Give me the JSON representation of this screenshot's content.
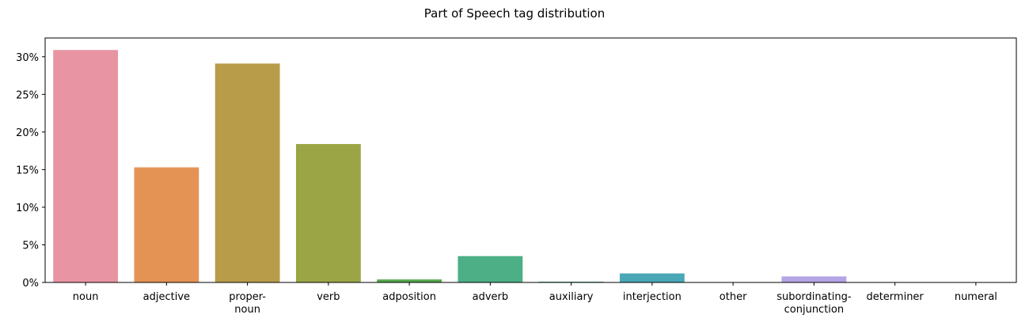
{
  "chart_data": {
    "type": "bar",
    "title": "Part of Speech tag distribution",
    "xlabel": "",
    "ylabel": "",
    "categories": [
      "noun",
      "adjective",
      "proper-\nnoun",
      "verb",
      "adposition",
      "adverb",
      "auxiliary",
      "interjection",
      "other",
      "subordinating-\nconjunction",
      "determiner",
      "numeral"
    ],
    "values": [
      30.9,
      15.3,
      29.1,
      18.4,
      0.4,
      3.5,
      0.1,
      1.2,
      0.0,
      0.8,
      0.0,
      0.0
    ],
    "colors": [
      "#e994a2",
      "#e49355",
      "#b89c49",
      "#9ba546",
      "#55a84c",
      "#4caf86",
      "#4aab99",
      "#4aa7b6",
      "#78a6e0",
      "#b4a4e5",
      "#e291e3",
      "#e98ec8"
    ],
    "ylim": [
      0,
      32.5
    ],
    "yticks": [
      0,
      5,
      10,
      15,
      20,
      25,
      30
    ],
    "ytick_labels": [
      "0%",
      "5%",
      "10%",
      "15%",
      "20%",
      "25%",
      "30%"
    ],
    "grid": false,
    "legend": "none"
  }
}
